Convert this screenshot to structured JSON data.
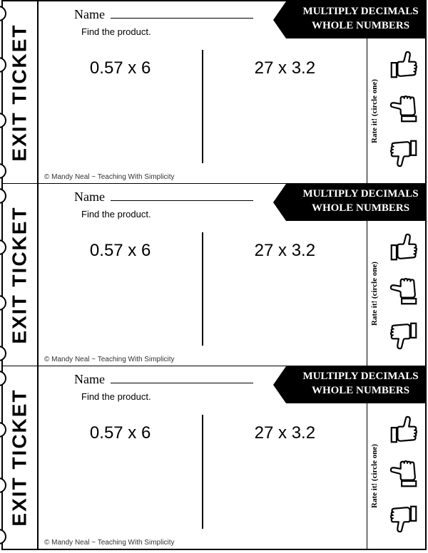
{
  "ticket": {
    "stub_label": "EXIT TICKET",
    "name_label": "Name",
    "instruction": "Find the product.",
    "header_line1": "MULTIPLY DECIMALS",
    "header_line2": "WHOLE NUMBERS",
    "problem1": "0.57 x 6",
    "problem2": "27 x 3.2",
    "rate_label": "Rate it! (circle one)",
    "copyright": "© Mandy Neal ~ Teaching With Simplicity"
  },
  "repeat_count": 3,
  "colors": {
    "bg": "#ffffff",
    "ink": "#000000"
  }
}
